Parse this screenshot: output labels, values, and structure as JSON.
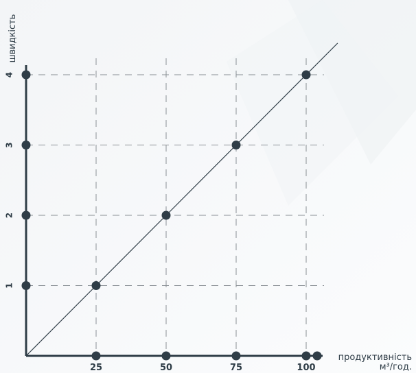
{
  "chart_data": {
    "type": "line",
    "x": [
      0,
      25,
      50,
      75,
      100
    ],
    "y": [
      0,
      1,
      2,
      3,
      4
    ],
    "x_ticks": [
      "25",
      "50",
      "75",
      "100"
    ],
    "y_ticks": [
      "1",
      "2",
      "3",
      "4"
    ],
    "xlabel_line1": "продуктивність",
    "xlabel_line2": "м³/год.",
    "ylabel": "швидкість",
    "xlim": [
      0,
      105
    ],
    "ylim": [
      0,
      4.2
    ],
    "grid": "dashed",
    "colors": {
      "axis": "#2f3d47",
      "point": "#2f3d47",
      "line": "#2f3d47",
      "grid": "#8a9095"
    }
  }
}
